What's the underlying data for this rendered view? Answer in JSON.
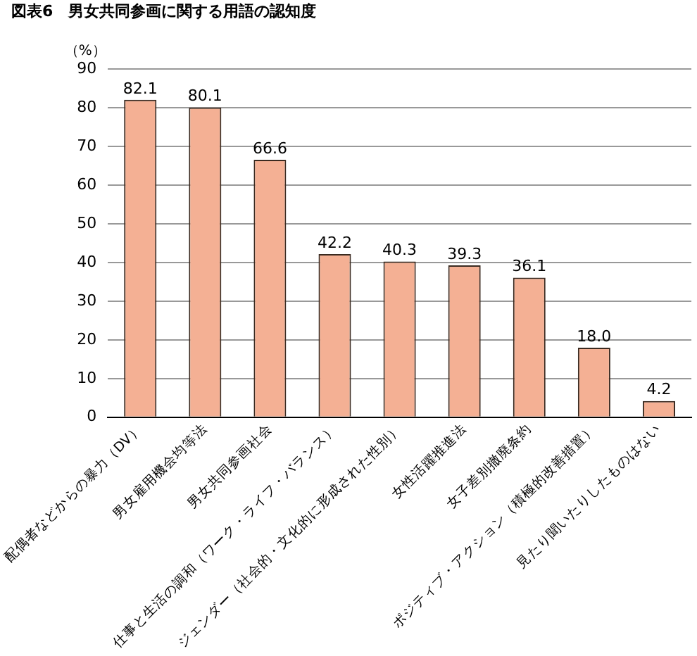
{
  "chart_data": {
    "type": "bar",
    "title": "図表6　男女共同参画に関する用語の認知度",
    "ylabel": "（%）",
    "categories": [
      "配偶者などからの暴力（DV）",
      "男女雇用機会均等法",
      "男女共同参画社会",
      "仕事と生活の調和（ワーク・ライフ・バランス）",
      "ジェンダー（社会的・文化的に形成された性別）",
      "女性活躍推進法",
      "女子差別撤廃条約",
      "ポジティブ・アクション（積極的改善措置）",
      "見たり聞いたりしたものはない"
    ],
    "values": [
      82.1,
      80.1,
      66.6,
      42.2,
      40.3,
      39.3,
      36.1,
      18.0,
      4.2
    ],
    "value_labels": [
      "82.1",
      "80.1",
      "66.6",
      "42.2",
      "40.3",
      "39.3",
      "36.1",
      "18.0",
      "4.2"
    ],
    "color": "#f4b094",
    "ylim": [
      0,
      90
    ],
    "yticks": [
      0,
      10,
      20,
      30,
      40,
      50,
      60,
      70,
      80,
      90
    ],
    "grid": "y",
    "legend": false
  }
}
